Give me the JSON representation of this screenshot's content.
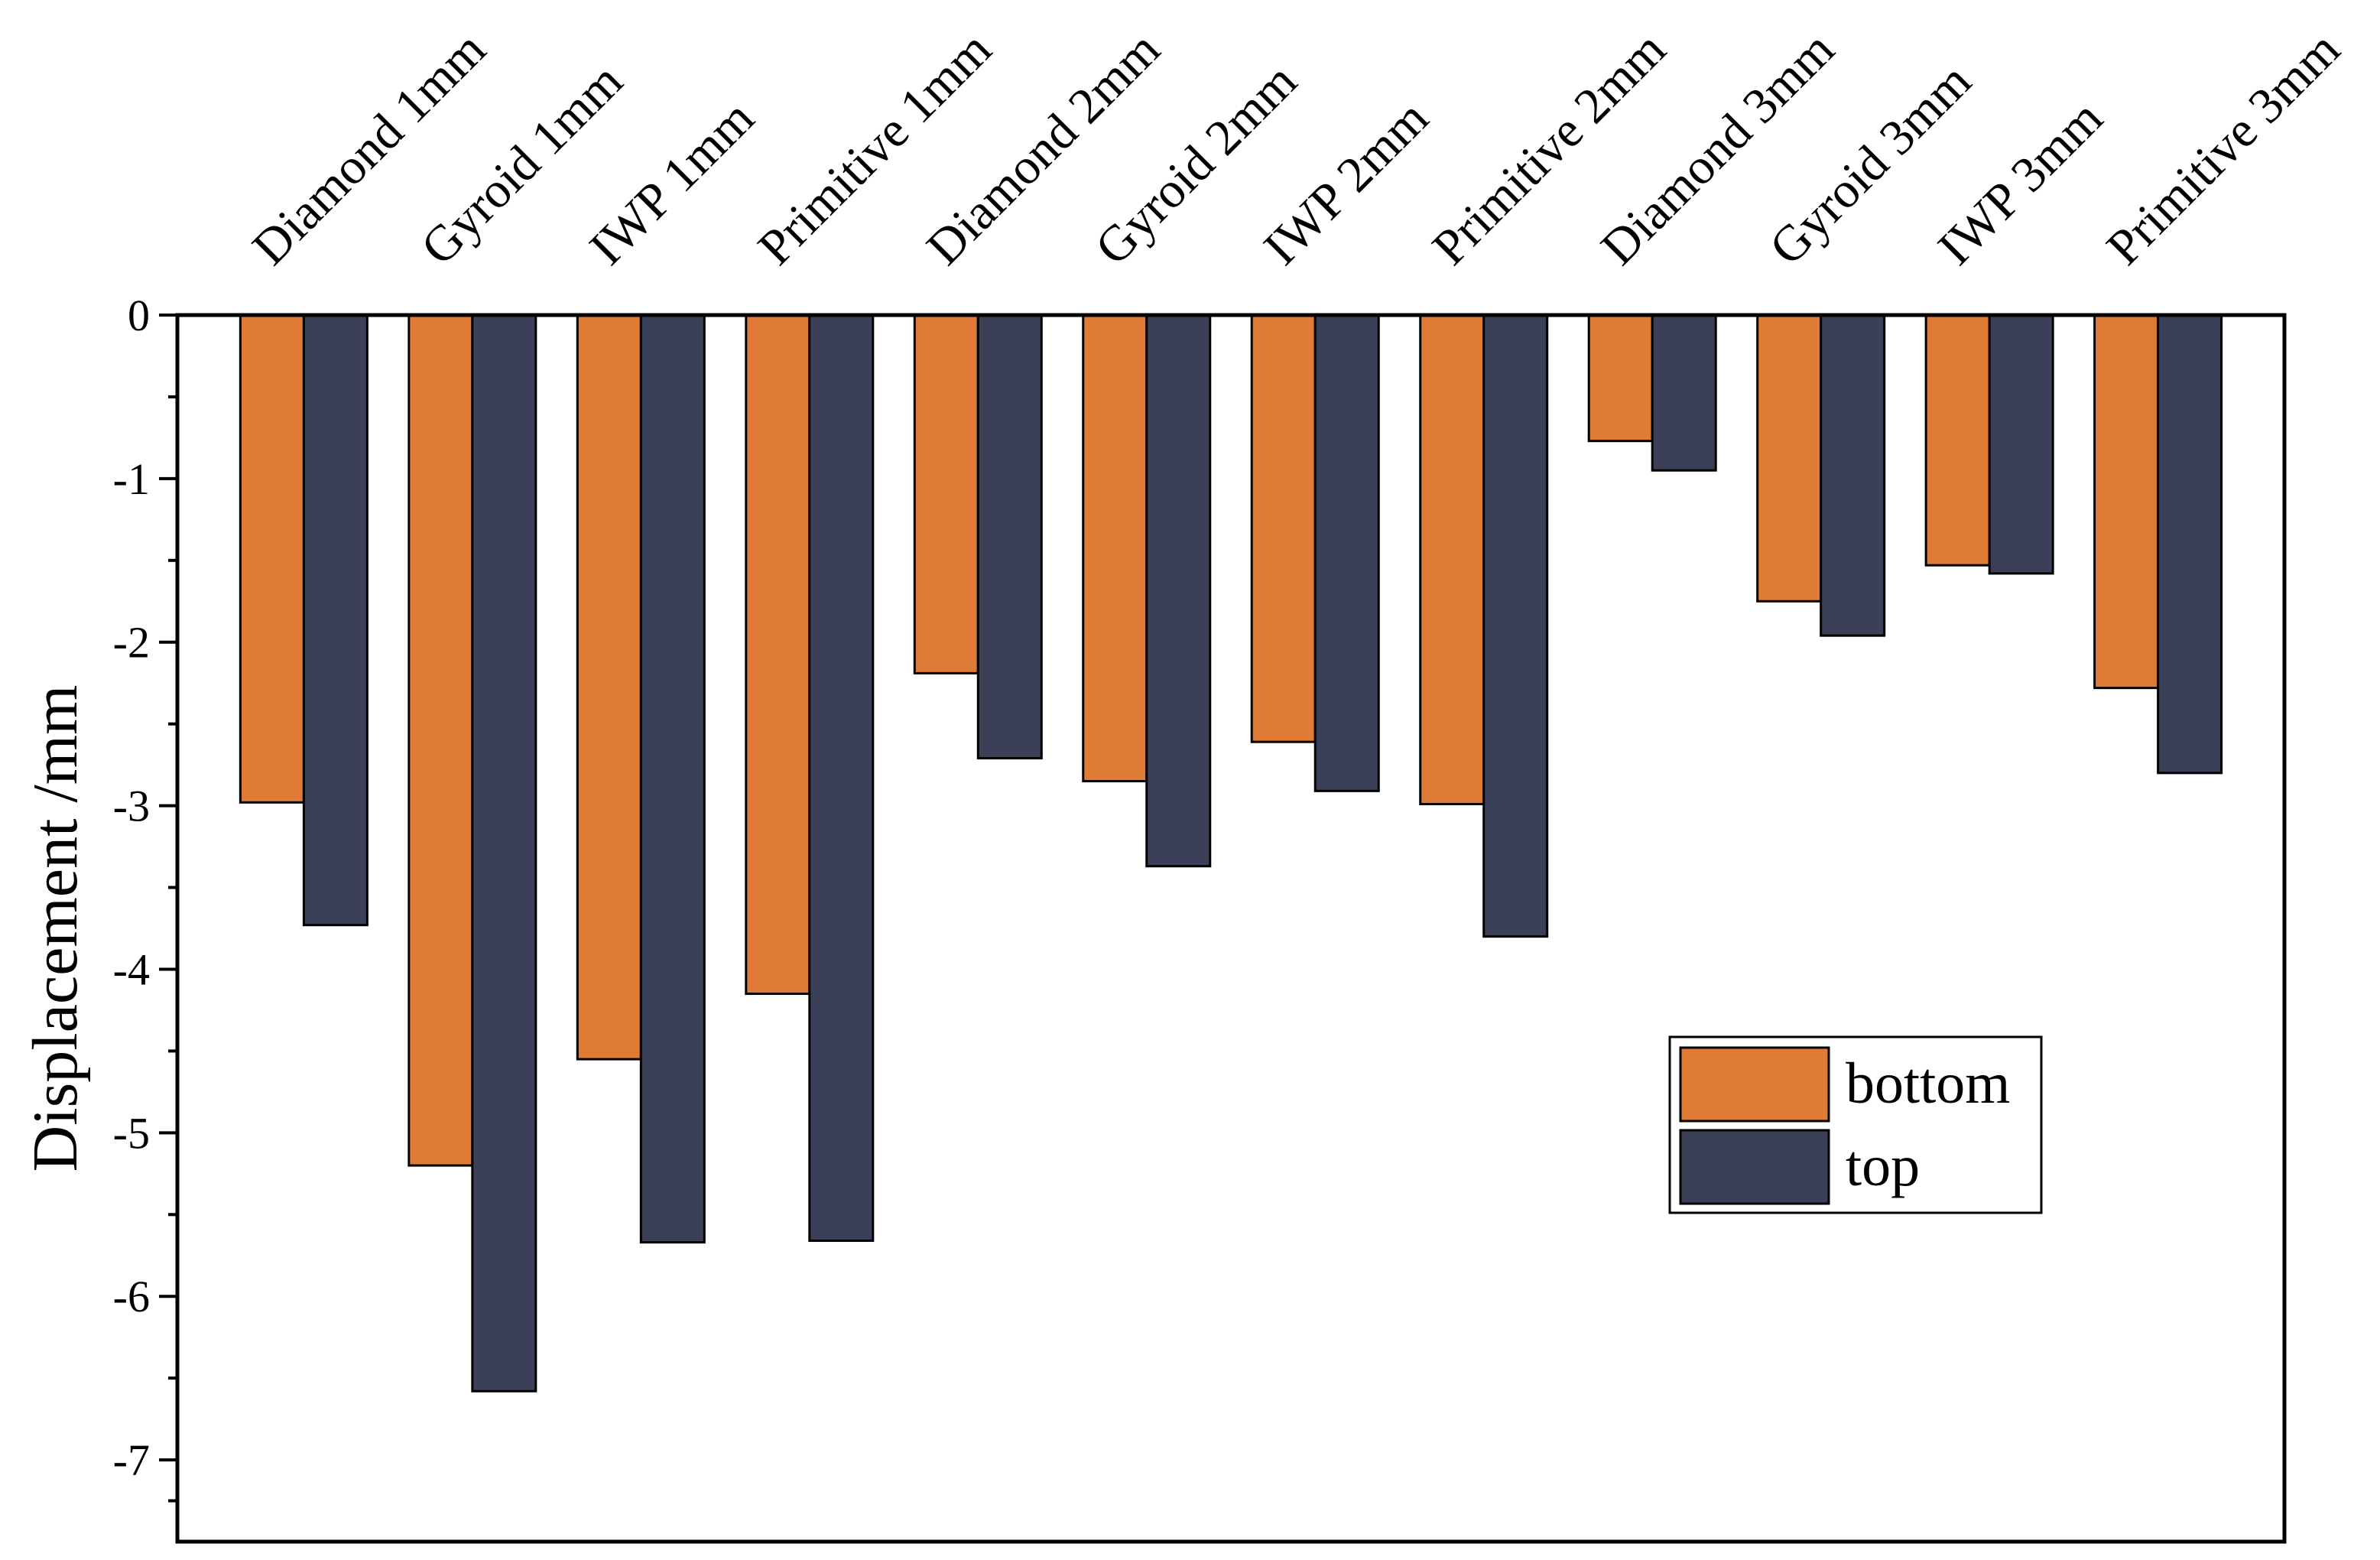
{
  "chart_data": {
    "type": "bar",
    "ylabel": "Displacement  /mm",
    "categories": [
      "Diamond 1mm",
      "Gyroid 1mm",
      "IWP 1mm",
      "Primitive 1mm",
      "Diamond 2mm",
      "Gyroid 2mm",
      "IWP 2mm",
      "Primitive 2mm",
      "Diamond 3mm",
      "Gyroid 3mm",
      "IWP 3mm",
      "Primitive 3mm"
    ],
    "series": [
      {
        "name": "bottom",
        "color": "#e07b35",
        "values": [
          -2.98,
          -5.2,
          -4.55,
          -4.15,
          -2.19,
          -2.85,
          -2.61,
          -2.99,
          -0.77,
          -1.75,
          -1.53,
          -2.28
        ]
      },
      {
        "name": "top",
        "color": "#3c3f58",
        "values": [
          -3.73,
          -6.58,
          -5.67,
          -5.66,
          -2.71,
          -3.37,
          -2.91,
          -3.8,
          -0.95,
          -1.96,
          -1.58,
          -2.8
        ]
      }
    ],
    "ylim": [
      -7.5,
      0
    ],
    "yticks": [
      0,
      -1,
      -2,
      -3,
      -4,
      -5,
      -6,
      -7
    ],
    "minor_ticks": true,
    "legend": "lower right"
  }
}
